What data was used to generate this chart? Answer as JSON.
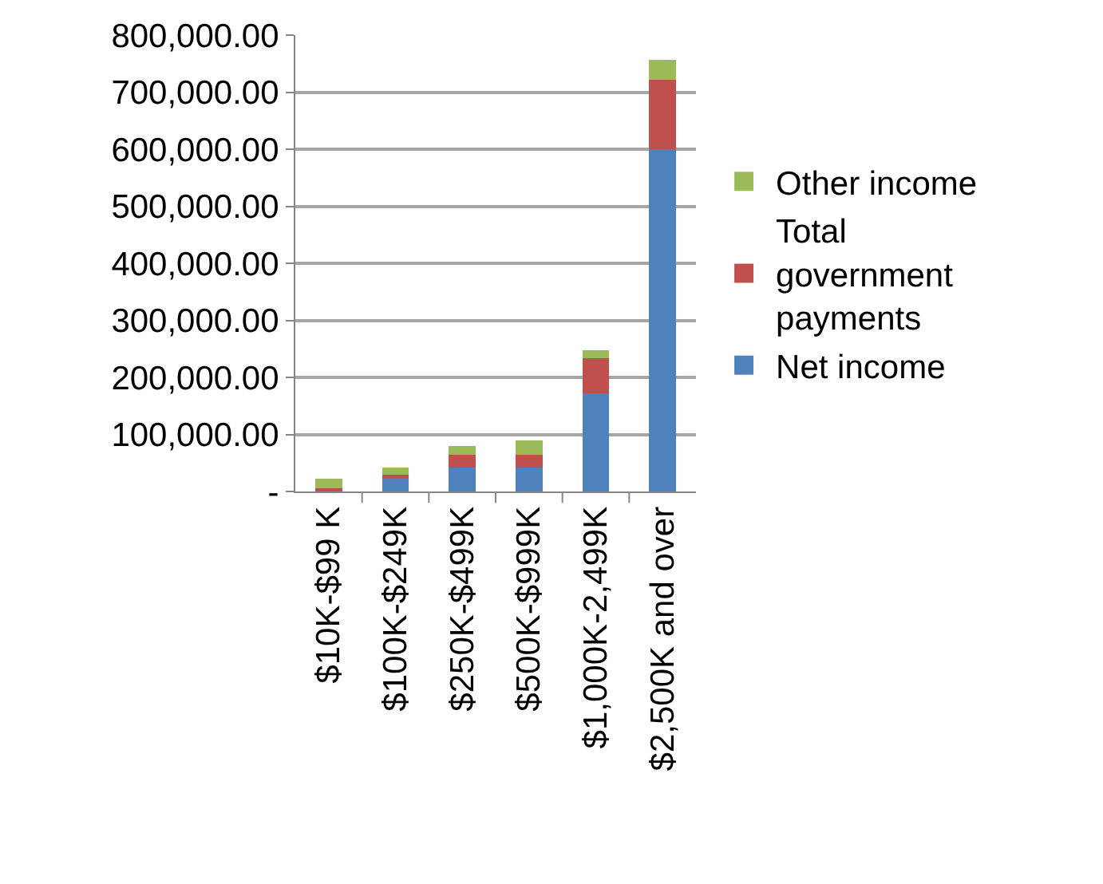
{
  "chart_data": {
    "type": "bar",
    "stacked": true,
    "categories": [
      "$10K-$99 K",
      "$100K-$249K",
      "$250K-$499K",
      "$500K-$999K",
      "$1,000K-2,499K",
      "$2,500K and over"
    ],
    "series": [
      {
        "name": "Net income",
        "color": "#4f81bd",
        "values": [
          1000,
          22000,
          42000,
          42000,
          172000,
          600000
        ]
      },
      {
        "name": "Total government payments",
        "color": "#c0504d",
        "values": [
          5000,
          8000,
          22000,
          22000,
          62000,
          122000
        ]
      },
      {
        "name": "Other income",
        "color": "#9bbb59",
        "values": [
          16000,
          12000,
          16000,
          25000,
          13000,
          35000
        ]
      }
    ],
    "ylim": [
      0,
      800000
    ],
    "yticks": [
      {
        "value": 0,
        "label": "-"
      },
      {
        "value": 100000,
        "label": "100,000.00"
      },
      {
        "value": 200000,
        "label": "200,000.00"
      },
      {
        "value": 300000,
        "label": "300,000.00"
      },
      {
        "value": 400000,
        "label": "400,000.00"
      },
      {
        "value": 500000,
        "label": "500,000.00"
      },
      {
        "value": 600000,
        "label": "600,000.00"
      },
      {
        "value": 700000,
        "label": "700,000.00"
      },
      {
        "value": 800000,
        "label": "800,000.00"
      }
    ],
    "grid": "y",
    "legend": "right"
  }
}
